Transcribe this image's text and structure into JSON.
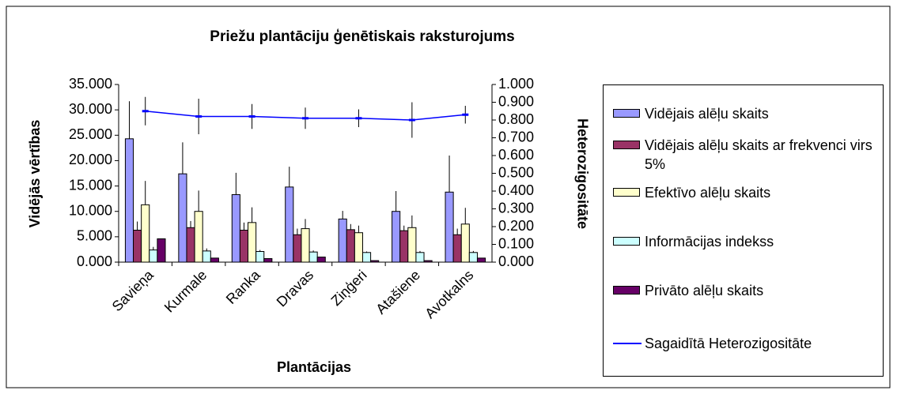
{
  "chart_data": {
    "type": "bar",
    "title": "Priežu plantāciju ģenētiskais raksturojums",
    "x_label": "Plantācijas",
    "y_label": "Vidējās vērtības",
    "y2_label": "Heterozigositāte",
    "categories": [
      "Savieņa",
      "Kurmale",
      "Ranka",
      "Dravas",
      "Ziņģeri",
      "Atašiene",
      "Avotkalns"
    ],
    "series": [
      {
        "name": "Vidējais alēļu skaits",
        "color": "#9999ff",
        "values": [
          24.3,
          17.4,
          13.3,
          14.8,
          8.5,
          10.0,
          13.8
        ],
        "errors": [
          7.4,
          6.2,
          4.3,
          4.0,
          1.6,
          4.0,
          7.2
        ]
      },
      {
        "name": "Vidējais alēļu skaits ar frekvenci virs 5%",
        "color": "#993366",
        "values": [
          6.3,
          6.8,
          6.3,
          5.4,
          6.4,
          6.2,
          5.4
        ],
        "errors": [
          1.7,
          1.3,
          1.5,
          1.2,
          1.1,
          1.0,
          1.2
        ]
      },
      {
        "name": "Efektīvo alēļu skaits",
        "color": "#ffffcc",
        "values": [
          11.3,
          10.0,
          7.8,
          6.6,
          5.8,
          6.8,
          7.5
        ],
        "errors": [
          4.7,
          4.1,
          3.0,
          1.9,
          1.4,
          2.4,
          3.2
        ]
      },
      {
        "name": "Informācijas indekss",
        "color": "#ccffff",
        "values": [
          2.4,
          2.2,
          2.1,
          2.0,
          1.9,
          1.9,
          1.9
        ],
        "errors": [
          0.6,
          0.5,
          0.3,
          0.3,
          0.2,
          0.3,
          0.3
        ]
      },
      {
        "name": "Privāto alēļu skaits",
        "color": "#660066",
        "values": [
          4.6,
          0.8,
          0.7,
          1.0,
          0.3,
          0.3,
          0.8
        ]
      },
      {
        "name": "Sagaidītā Heterozigositāte",
        "color": "#0000ff",
        "type": "line",
        "axis": "y2",
        "values": [
          0.85,
          0.82,
          0.82,
          0.81,
          0.81,
          0.8,
          0.83
        ],
        "errors": [
          0.08,
          0.1,
          0.07,
          0.06,
          0.05,
          0.1,
          0.05
        ]
      }
    ],
    "ylim": [
      0,
      35
    ],
    "yticks": [
      {
        "value": 0,
        "label": "0.000"
      },
      {
        "value": 5,
        "label": "5.000"
      },
      {
        "value": 10,
        "label": "10.000"
      },
      {
        "value": 15,
        "label": "15.000"
      },
      {
        "value": 20,
        "label": "20.000"
      },
      {
        "value": 25,
        "label": "25.000"
      },
      {
        "value": 30,
        "label": "30.000"
      },
      {
        "value": 35,
        "label": "35.000"
      }
    ],
    "y2lim": [
      0,
      1
    ],
    "y2ticks": [
      {
        "value": 0,
        "label": "0.000"
      },
      {
        "value": 0.1,
        "label": "0.100"
      },
      {
        "value": 0.2,
        "label": "0.200"
      },
      {
        "value": 0.3,
        "label": "0.300"
      },
      {
        "value": 0.4,
        "label": "0.400"
      },
      {
        "value": 0.5,
        "label": "0.500"
      },
      {
        "value": 0.6,
        "label": "0.600"
      },
      {
        "value": 0.7,
        "label": "0.700"
      },
      {
        "value": 0.8,
        "label": "0.800"
      },
      {
        "value": 0.9,
        "label": "0.900"
      },
      {
        "value": 1,
        "label": "1.000"
      }
    ],
    "grid": false,
    "legend": "right"
  }
}
